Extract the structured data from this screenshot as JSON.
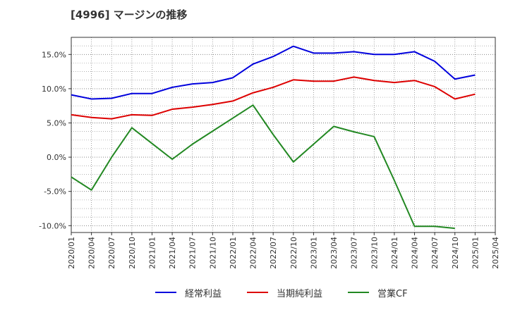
{
  "title": "[4996]  マージンの推移",
  "chart_data": {
    "type": "line",
    "x": [
      "2020/01",
      "2020/04",
      "2020/07",
      "2020/10",
      "2021/01",
      "2021/04",
      "2021/07",
      "2021/10",
      "2022/01",
      "2022/04",
      "2022/07",
      "2022/10",
      "2023/01",
      "2023/04",
      "2023/07",
      "2023/10",
      "2024/01",
      "2024/04",
      "2024/07",
      "2024/10",
      "2025/01",
      "2025/04"
    ],
    "ylim": [
      -11,
      17.5
    ],
    "yticks": [
      -10,
      -5,
      0,
      5,
      10,
      15
    ],
    "ytick_labels": [
      "-10.0%",
      "-5.0%",
      "0.0%",
      "5.0%",
      "10.0%",
      "15.0%"
    ],
    "grid": true,
    "legend_position": "bottom",
    "series": [
      {
        "name": "経常利益",
        "color": "#0000dd",
        "values": [
          9.1,
          8.5,
          8.6,
          9.3,
          9.3,
          10.2,
          10.7,
          10.9,
          11.6,
          13.6,
          14.7,
          16.2,
          15.2,
          15.2,
          15.4,
          15.0,
          15.0,
          15.4,
          14.0,
          11.4,
          12.0,
          null
        ]
      },
      {
        "name": "当期純利益",
        "color": "#dd0000",
        "values": [
          6.2,
          5.8,
          5.6,
          6.2,
          6.1,
          7.0,
          7.3,
          7.7,
          8.2,
          9.4,
          10.2,
          11.3,
          11.1,
          11.1,
          11.7,
          11.2,
          10.9,
          11.2,
          10.3,
          8.5,
          9.2,
          null
        ]
      },
      {
        "name": "営業CF",
        "color": "#228822",
        "values": [
          -2.9,
          -4.8,
          0.0,
          4.3,
          2.0,
          -0.3,
          1.9,
          3.8,
          5.7,
          7.6,
          3.3,
          -0.7,
          1.9,
          4.5,
          3.7,
          3.0,
          -3.4,
          -10.1,
          -10.1,
          -10.4,
          null,
          null
        ]
      }
    ]
  }
}
